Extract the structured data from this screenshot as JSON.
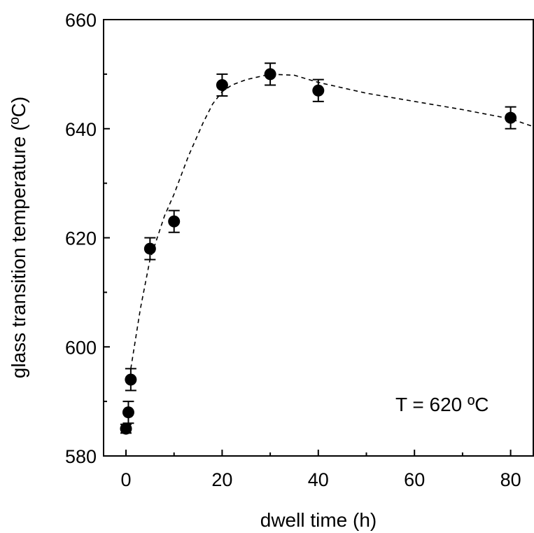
{
  "chart_data": {
    "type": "scatter",
    "title": "",
    "xlabel": "dwell time (h)",
    "ylabel": "glass transition temperature (ºC)",
    "xlim": [
      -5,
      85
    ],
    "ylim": [
      580,
      660
    ],
    "x_ticks": [
      0,
      20,
      40,
      60,
      80
    ],
    "x_tick_labels": [
      "0",
      "20",
      "40",
      "60",
      "80"
    ],
    "y_ticks": [
      580,
      600,
      620,
      640,
      660
    ],
    "y_tick_labels": [
      "580",
      "600",
      "620",
      "640",
      "660"
    ],
    "grid": false,
    "annotation": "T = 620 ºC",
    "series": [
      {
        "marker": "filled-circle",
        "color": "#000000",
        "points": [
          {
            "x": 0,
            "y": 585,
            "err": 0.8
          },
          {
            "x": 0.5,
            "y": 588,
            "err": 2
          },
          {
            "x": 1,
            "y": 594,
            "err": 2
          },
          {
            "x": 5,
            "y": 618,
            "err": 2
          },
          {
            "x": 10,
            "y": 623,
            "err": 2
          },
          {
            "x": 20,
            "y": 648,
            "err": 2
          },
          {
            "x": 30,
            "y": 650,
            "err": 2
          },
          {
            "x": 40,
            "y": 647,
            "err": 2
          },
          {
            "x": 80,
            "y": 642,
            "err": 2
          }
        ]
      }
    ],
    "fit_curve": {
      "style": "dashed",
      "color": "#000000",
      "points": [
        {
          "x": 1,
          "y": 596
        },
        {
          "x": 3,
          "y": 607
        },
        {
          "x": 5,
          "y": 616
        },
        {
          "x": 8,
          "y": 624
        },
        {
          "x": 10,
          "y": 628
        },
        {
          "x": 13,
          "y": 635
        },
        {
          "x": 16,
          "y": 641
        },
        {
          "x": 18,
          "y": 644.5
        },
        {
          "x": 20,
          "y": 646.8
        },
        {
          "x": 22,
          "y": 648
        },
        {
          "x": 25,
          "y": 649
        },
        {
          "x": 30,
          "y": 650
        },
        {
          "x": 35,
          "y": 649.8
        },
        {
          "x": 40,
          "y": 648.5
        },
        {
          "x": 50,
          "y": 646.5
        },
        {
          "x": 60,
          "y": 645
        },
        {
          "x": 70,
          "y": 643.5
        },
        {
          "x": 80,
          "y": 641.8
        },
        {
          "x": 85,
          "y": 640.3
        }
      ]
    }
  }
}
